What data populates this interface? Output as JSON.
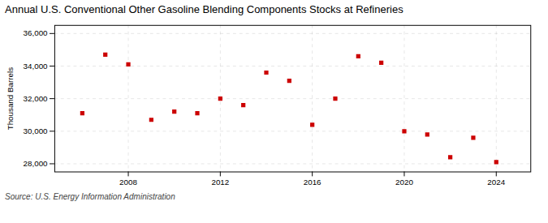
{
  "chart_data": {
    "type": "scatter",
    "title": "Annual U.S. Conventional Other Gasoline Blending Components Stocks at Refineries",
    "ylabel": "Thousand Barrels",
    "source": "Source: U.S. Energy Information Administration",
    "x": [
      2006,
      2007,
      2008,
      2009,
      2010,
      2011,
      2012,
      2013,
      2014,
      2015,
      2016,
      2017,
      2018,
      2019,
      2020,
      2021,
      2022,
      2023,
      2024
    ],
    "values": [
      31100,
      34700,
      34100,
      30700,
      31200,
      31100,
      32000,
      31600,
      33600,
      33100,
      30400,
      32000,
      34600,
      34200,
      30000,
      29800,
      28400,
      29600,
      28100
    ],
    "color": "#cc0000",
    "marker": "square",
    "xlim": [
      2004.8,
      2025.5
    ],
    "xticks": [
      2008,
      2012,
      2016,
      2020,
      2024
    ],
    "ylim": [
      27500,
      36500
    ],
    "yticks": [
      {
        "value": 28000,
        "label": "28,000"
      },
      {
        "value": 30000,
        "label": "30,000"
      },
      {
        "value": 32000,
        "label": "32,000"
      },
      {
        "value": 34000,
        "label": "34,000"
      },
      {
        "value": 36000,
        "label": "36,000"
      }
    ],
    "grid": true
  }
}
